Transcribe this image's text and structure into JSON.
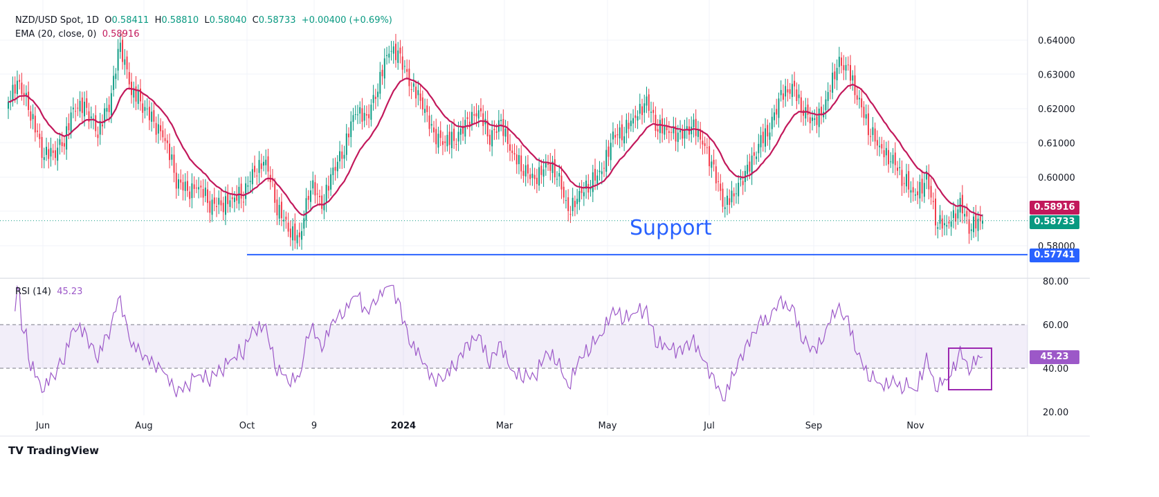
{
  "header": {
    "symbol": "NZD/USD Spot, 1D",
    "o_label": "O",
    "o": "0.58411",
    "h_label": "H",
    "h": "0.58810",
    "l_label": "L",
    "l": "0.58040",
    "c_label": "C",
    "c": "0.58733",
    "change": "+0.00400 (+0.69%)",
    "ema_label": "EMA (20, close, 0)",
    "ema_value": "0.58916",
    "rsi_label": "RSI (14)",
    "rsi_value": "45.23"
  },
  "annotations": {
    "support_text": "Support",
    "support_level": "0.57741"
  },
  "tags": {
    "ema": "0.58916",
    "close": "0.58733",
    "support": "0.57741",
    "rsi": "45.23"
  },
  "colors": {
    "up": "#089981",
    "down": "#f23645",
    "ema": "#c2185b",
    "rsi": "#9c58c8",
    "support": "#2962ff"
  },
  "logo": "TradingView",
  "chart_data": [
    {
      "type": "candlestick",
      "title": "NZD/USD Spot, 1D",
      "ylim": [
        0.574,
        0.642
      ],
      "y_ticks": [
        "0.64000",
        "0.63000",
        "0.62000",
        "0.61000",
        "0.60000",
        "0.58000"
      ],
      "x_ticks": [
        "Jun",
        "Aug",
        "Oct",
        "9",
        "2024",
        "Mar",
        "May",
        "Jul",
        "Sep",
        "Nov"
      ],
      "close_samples": [
        0.622,
        0.626,
        0.618,
        0.606,
        0.605,
        0.61,
        0.62,
        0.618,
        0.612,
        0.62,
        0.637,
        0.624,
        0.62,
        0.614,
        0.61,
        0.598,
        0.594,
        0.596,
        0.591,
        0.59,
        0.592,
        0.594,
        0.6,
        0.603,
        0.59,
        0.583,
        0.58,
        0.597,
        0.59,
        0.6,
        0.607,
        0.618,
        0.615,
        0.625,
        0.636,
        0.633,
        0.625,
        0.62,
        0.61,
        0.609,
        0.61,
        0.614,
        0.618,
        0.61,
        0.614,
        0.605,
        0.601,
        0.597,
        0.602,
        0.6,
        0.588,
        0.593,
        0.597,
        0.6,
        0.61,
        0.612,
        0.616,
        0.62,
        0.613,
        0.612,
        0.61,
        0.614,
        0.609,
        0.6,
        0.59,
        0.595,
        0.6,
        0.608,
        0.613,
        0.622,
        0.625,
        0.618,
        0.614,
        0.62,
        0.632,
        0.63,
        0.62,
        0.612,
        0.606,
        0.603,
        0.598,
        0.593,
        0.598,
        0.585,
        0.585,
        0.59,
        0.584,
        0.5873
      ],
      "ema_period": 20,
      "support": 0.57741
    },
    {
      "type": "line",
      "title": "RSI (14)",
      "ylim": [
        20,
        80
      ],
      "y_ticks": [
        "80.00",
        "60.00",
        "40.00",
        "20.00"
      ],
      "bands": [
        40,
        60
      ],
      "last": 45.23
    }
  ]
}
